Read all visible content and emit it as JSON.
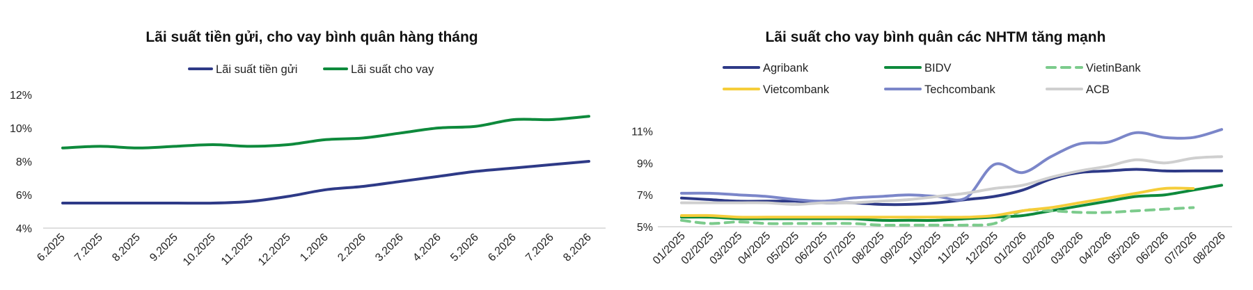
{
  "chart_data": [
    {
      "type": "line",
      "title": "Lãi suất tiền gửi, cho vay bình quân hàng tháng",
      "xlabel": "",
      "ylabel": "",
      "categories": [
        "6.2025",
        "7.2025",
        "8.2025",
        "9.2025",
        "10.2025",
        "11.2025",
        "12.2025",
        "1.2026",
        "2.2026",
        "3.2026",
        "4.2026",
        "5.2026",
        "6.2026",
        "7.2026",
        "8.2026"
      ],
      "y_ticks": [
        "12%",
        "10%",
        "8%",
        "6%",
        "4%"
      ],
      "ylim": [
        4,
        12
      ],
      "grid": false,
      "legend_position": "top",
      "series": [
        {
          "name": "Lãi suất tiền gửi",
          "color": "#2e3a87",
          "dash": false,
          "values": [
            5.5,
            5.5,
            5.5,
            5.5,
            5.5,
            5.6,
            5.9,
            6.3,
            6.5,
            6.8,
            7.1,
            7.4,
            7.6,
            7.8,
            8.0
          ]
        },
        {
          "name": "Lãi suất cho vay",
          "color": "#0e8a3c",
          "dash": false,
          "values": [
            8.8,
            8.9,
            8.8,
            8.9,
            9.0,
            8.9,
            9.0,
            9.3,
            9.4,
            9.7,
            10.0,
            10.1,
            10.5,
            10.5,
            10.7
          ]
        }
      ]
    },
    {
      "type": "line",
      "title": "Lãi suất cho vay bình quân các NHTM tăng mạnh",
      "xlabel": "",
      "ylabel": "",
      "categories": [
        "01/2025",
        "02/2025",
        "03/2025",
        "04/2025",
        "05/2025",
        "06/2025",
        "07/2025",
        "08/2025",
        "09/2025",
        "10/2025",
        "11/2025",
        "12/2025",
        "01/2026",
        "02/2026",
        "03/2026",
        "04/2026",
        "05/2026",
        "06/2026",
        "07/2026",
        "08/2026"
      ],
      "y_ticks": [
        "11%",
        "9%",
        "7%",
        "5%"
      ],
      "ylim": [
        5,
        11
      ],
      "grid": false,
      "legend_position": "top",
      "series": [
        {
          "name": "Agribank",
          "color": "#2e3a87",
          "dash": false,
          "values": [
            6.8,
            6.7,
            6.6,
            6.6,
            6.6,
            6.5,
            6.5,
            6.4,
            6.4,
            6.5,
            6.7,
            6.9,
            7.3,
            8.0,
            8.4,
            8.5,
            8.6,
            8.5,
            8.5,
            8.5
          ]
        },
        {
          "name": "BIDV",
          "color": "#0e8a3c",
          "dash": false,
          "values": [
            5.6,
            5.6,
            5.5,
            5.5,
            5.5,
            5.5,
            5.5,
            5.4,
            5.4,
            5.4,
            5.5,
            5.6,
            5.7,
            6.0,
            6.3,
            6.6,
            6.9,
            7.0,
            7.3,
            7.6
          ]
        },
        {
          "name": "VietinBank",
          "color": "#7ccb8c",
          "dash": true,
          "values": [
            5.4,
            5.2,
            5.3,
            5.2,
            5.2,
            5.2,
            5.2,
            5.1,
            5.1,
            5.1,
            5.1,
            5.2,
            6.0,
            6.0,
            5.9,
            5.9,
            6.0,
            6.1,
            6.2,
            null
          ]
        },
        {
          "name": "Vietcombank",
          "color": "#f5cd3a",
          "dash": false,
          "values": [
            5.7,
            5.7,
            5.6,
            5.6,
            5.6,
            5.6,
            5.6,
            5.6,
            5.6,
            5.6,
            5.6,
            5.7,
            6.0,
            6.2,
            6.5,
            6.8,
            7.1,
            7.4,
            7.4,
            null
          ]
        },
        {
          "name": "Techcombank",
          "color": "#7b86c9",
          "dash": false,
          "values": [
            7.1,
            7.1,
            7.0,
            6.9,
            6.7,
            6.6,
            6.8,
            6.9,
            7.0,
            6.9,
            6.8,
            8.9,
            8.4,
            9.4,
            10.2,
            10.3,
            10.9,
            10.6,
            10.6,
            11.1
          ]
        },
        {
          "name": "ACB",
          "color": "#cfcfcf",
          "dash": false,
          "values": [
            6.5,
            6.5,
            6.5,
            6.5,
            6.4,
            6.5,
            6.5,
            6.6,
            6.7,
            6.9,
            7.1,
            7.4,
            7.6,
            8.1,
            8.5,
            8.8,
            9.2,
            9.0,
            9.3,
            9.4
          ]
        }
      ]
    }
  ]
}
